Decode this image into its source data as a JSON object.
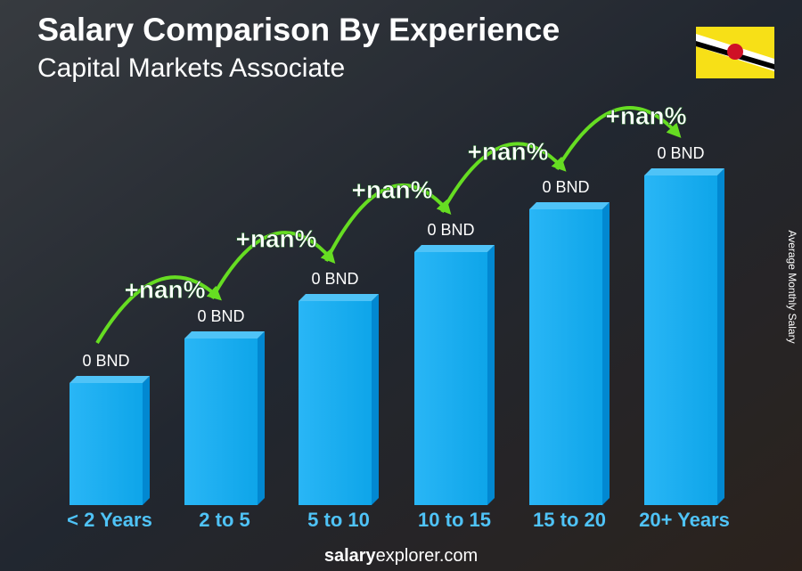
{
  "header": {
    "title": "Salary Comparison By Experience",
    "subtitle": "Capital Markets Associate"
  },
  "y_axis_label": "Average Monthly Salary",
  "columns": [
    {
      "category": "< 2 Years",
      "value_label": "0 BND"
    },
    {
      "category": "2 to 5",
      "value_label": "0 BND"
    },
    {
      "category": "5 to 10",
      "value_label": "0 BND"
    },
    {
      "category": "10 to 15",
      "value_label": "0 BND"
    },
    {
      "category": "15 to 20",
      "value_label": "0 BND"
    },
    {
      "category": "20+ Years",
      "value_label": "0 BND"
    }
  ],
  "changes": [
    "+nan%",
    "+nan%",
    "+nan%",
    "+nan%",
    "+nan%"
  ],
  "footer": {
    "brand_bold": "salary",
    "brand_rest": "explorer",
    "brand_tld": ".com"
  }
}
